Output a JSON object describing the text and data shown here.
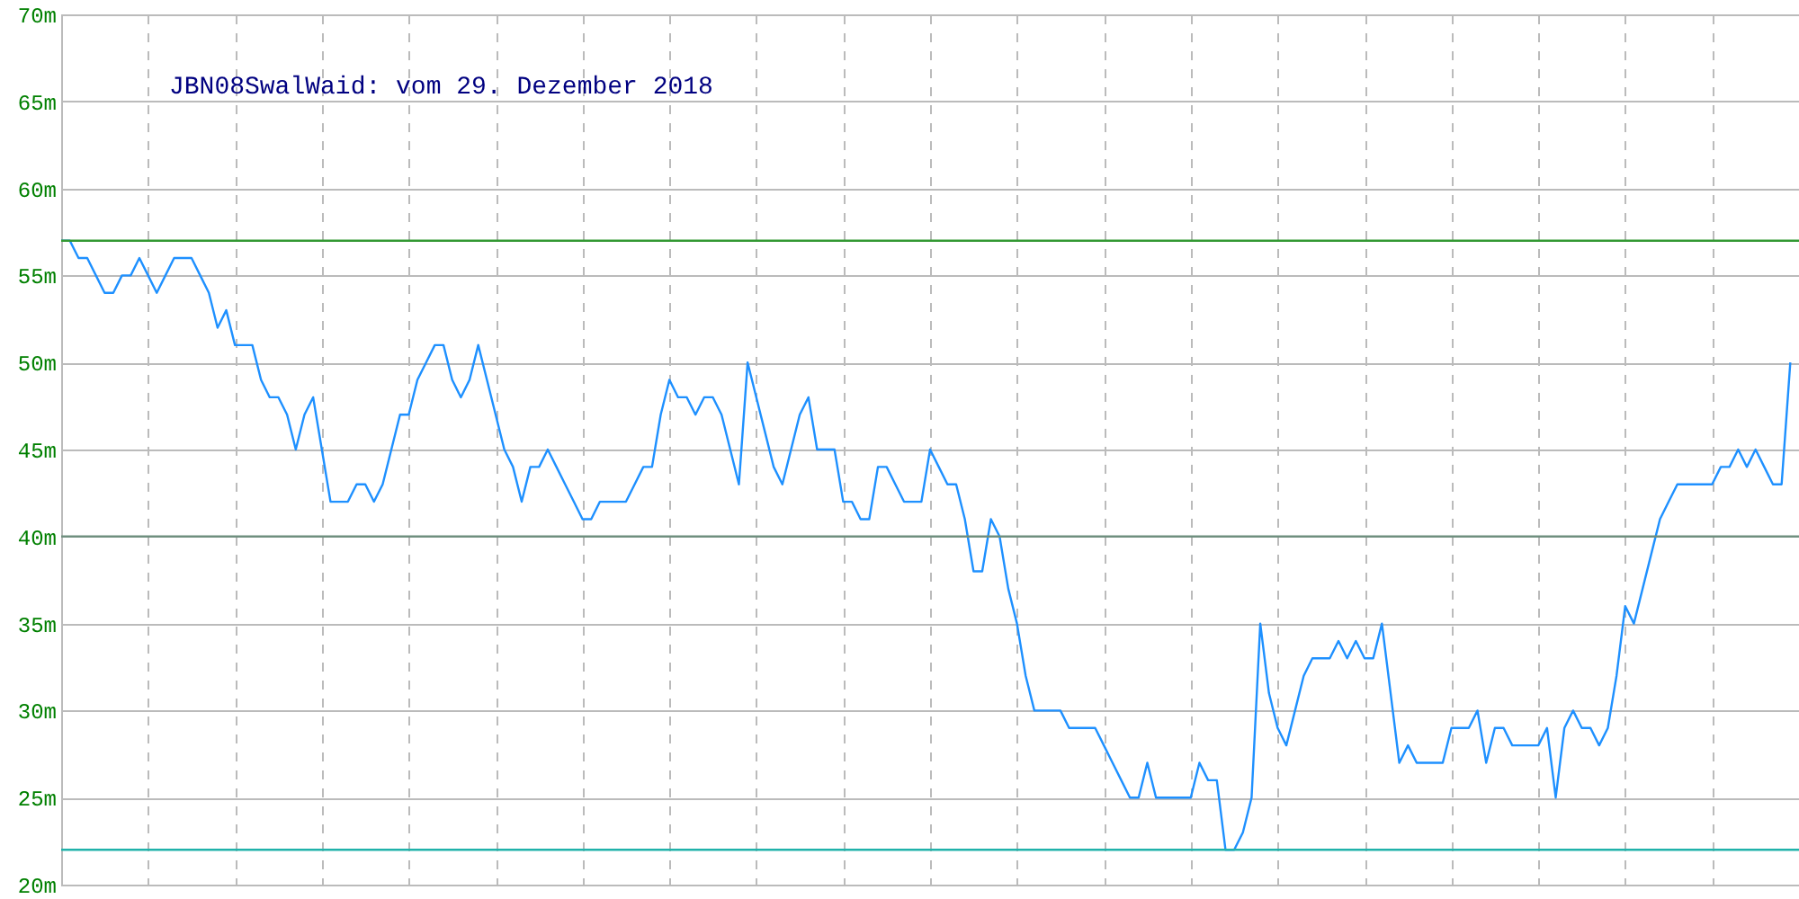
{
  "chart_data": {
    "type": "line",
    "title": "JBN08SwalWaid: vom 29. Dezember 2018",
    "categories": [
      null,
      null,
      null,
      null,
      null,
      null,
      null,
      null,
      null,
      null,
      null,
      null,
      null,
      null,
      null,
      null,
      null,
      null,
      null,
      null,
      null,
      null,
      null,
      null,
      null,
      null,
      null,
      null,
      null,
      null,
      null,
      null,
      null,
      null,
      null,
      null,
      null,
      null,
      null,
      null,
      null,
      null,
      null,
      null,
      null,
      null,
      null,
      null,
      null,
      null,
      null,
      null,
      null,
      null,
      null,
      null,
      null,
      null,
      null,
      null,
      null,
      null,
      null,
      null,
      null,
      null,
      null,
      null,
      null,
      null,
      null,
      null,
      null,
      null,
      null,
      null,
      null,
      null,
      null,
      null,
      null,
      null,
      null,
      null,
      null,
      null,
      null,
      null,
      null,
      null,
      null,
      null,
      null,
      null,
      null,
      null,
      null,
      null,
      null,
      null,
      null,
      null,
      null,
      null,
      null,
      null,
      null,
      null,
      null,
      null,
      null,
      null,
      null,
      null,
      null,
      null,
      null,
      null,
      null,
      null,
      null,
      null,
      null,
      null,
      null,
      null,
      null,
      null,
      null,
      null,
      null,
      null,
      null,
      null,
      null,
      null,
      null,
      null,
      null,
      null,
      null,
      null,
      null,
      null,
      null,
      null,
      null,
      null,
      null,
      null,
      null,
      null,
      null,
      null,
      null,
      null,
      null,
      null,
      null,
      null,
      null,
      null,
      null,
      null,
      null,
      null,
      null,
      null,
      null,
      null,
      null,
      null,
      null,
      null,
      null,
      null,
      null,
      null,
      null,
      null,
      null,
      null,
      null,
      null,
      null,
      null,
      null,
      null,
      null,
      null,
      null,
      null,
      null,
      null,
      null,
      null,
      null,
      null,
      null,
      null
    ],
    "series": [
      {
        "color": "#1e90ff",
        "values": [
          57,
          57,
          56,
          56,
          55,
          54,
          54,
          55,
          55,
          56,
          55,
          54,
          55,
          56,
          56,
          56,
          55,
          54,
          52,
          53,
          51,
          51,
          51,
          49,
          48,
          48,
          47,
          45,
          47,
          48,
          45,
          42,
          42,
          42,
          43,
          43,
          42,
          43,
          45,
          47,
          47,
          49,
          50,
          51,
          51,
          49,
          48,
          49,
          51,
          49,
          47,
          45,
          44,
          42,
          44,
          44,
          45,
          44,
          43,
          42,
          41,
          41,
          42,
          42,
          42,
          42,
          43,
          44,
          44,
          47,
          49,
          48,
          48,
          47,
          48,
          48,
          47,
          45,
          43,
          50,
          48,
          46,
          44,
          43,
          45,
          47,
          48,
          45,
          45,
          45,
          42,
          42,
          41,
          41,
          44,
          44,
          43,
          42,
          42,
          42,
          45,
          44,
          43,
          43,
          41,
          38,
          38,
          41,
          40,
          37,
          35,
          32,
          30,
          30,
          30,
          30,
          29,
          29,
          29,
          29,
          28,
          27,
          26,
          25,
          25,
          27,
          25,
          25,
          25,
          25,
          25,
          27,
          26,
          26,
          22,
          22,
          23,
          25,
          35,
          31,
          29,
          28,
          30,
          32,
          33,
          33,
          33,
          34,
          33,
          34,
          33,
          33,
          35,
          31,
          27,
          28,
          27,
          27,
          27,
          27,
          29,
          29,
          29,
          30,
          27,
          29,
          29,
          28,
          28,
          28,
          28,
          29,
          25,
          29,
          30,
          29,
          29,
          28,
          29,
          32,
          36,
          35,
          37,
          39,
          41,
          42,
          43,
          43,
          43,
          43,
          43,
          44,
          44,
          45,
          44,
          45,
          44,
          43,
          43,
          50
        ]
      }
    ],
    "ylim": [
      20,
      70
    ],
    "yticks": [
      {
        "value": 20,
        "label": "20m"
      },
      {
        "value": 25,
        "label": "25m"
      },
      {
        "value": 30,
        "label": "30m"
      },
      {
        "value": 35,
        "label": "35m"
      },
      {
        "value": 40,
        "label": "40m"
      },
      {
        "value": 45,
        "label": "45m"
      },
      {
        "value": 50,
        "label": "50m"
      },
      {
        "value": 55,
        "label": "55m"
      },
      {
        "value": 60,
        "label": "60m"
      },
      {
        "value": 65,
        "label": "65m"
      },
      {
        "value": 70,
        "label": "70m"
      }
    ],
    "ref_lines": [
      {
        "axis": "y",
        "value": 57,
        "color": "#339933"
      },
      {
        "axis": "y",
        "value": 40,
        "color": "#6f8f7f"
      },
      {
        "axis": "y",
        "value": 22,
        "color": "#20b2aa"
      }
    ],
    "grid": true,
    "marker": "none",
    "line_style": "solid"
  }
}
